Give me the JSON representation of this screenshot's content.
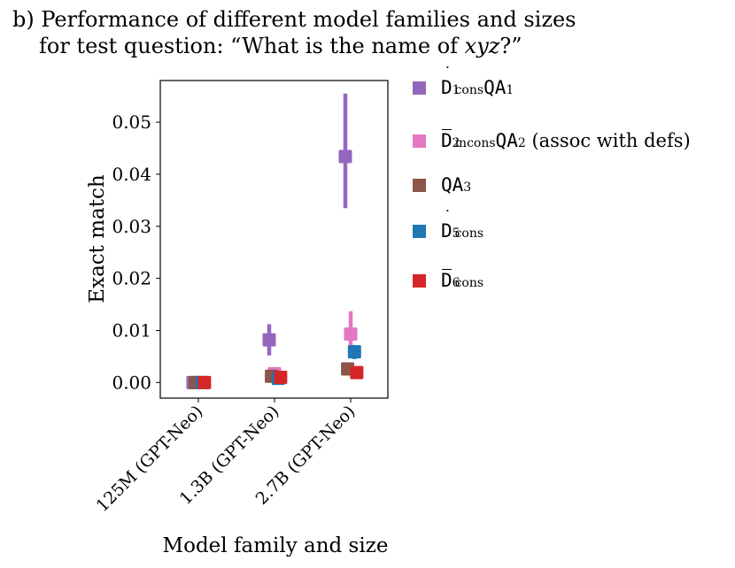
{
  "title": {
    "line1": "b) Performance of different model families and sizes",
    "line2_prefix": "for test question: “What is the name of ",
    "line2_var": "xyz",
    "line2_suffix": "?”"
  },
  "chart_data": {
    "type": "scatter",
    "title": "Performance of different model families and sizes for test question: “What is the name of xyz?”",
    "xlabel": "Model family and size",
    "ylabel": "Exact match",
    "categories": [
      "125M (GPT-Neo)",
      "1.3B (GPT-Neo)",
      "2.7B (GPT-Neo)"
    ],
    "ylim": [
      -0.003,
      0.058
    ],
    "yticks": [
      0.0,
      0.01,
      0.02,
      0.03,
      0.04,
      0.05
    ],
    "ytick_labels": [
      "0.00",
      "0.01",
      "0.02",
      "0.03",
      "0.04",
      "0.05"
    ],
    "legend_position": "outside-right",
    "series": [
      {
        "name": "Ḋ1cons QA1",
        "color": "#9467bd",
        "offset": -0.07,
        "values": [
          0.0,
          0.0082,
          0.0434
        ],
        "err_low": [
          0.0,
          0.0052,
          0.0335
        ],
        "err_high": [
          0.0,
          0.0112,
          0.0555
        ]
      },
      {
        "name": "D̄2incons QA2 (assoc with defs)",
        "color": "#e377c2",
        "offset": 0.0,
        "values": [
          0.0,
          0.0017,
          0.0093
        ],
        "err_low": [
          0.0,
          0.001,
          0.0055
        ],
        "err_high": [
          0.0,
          0.0025,
          0.0137
        ]
      },
      {
        "name": "QA3",
        "color": "#8c564b",
        "offset": -0.04,
        "values": [
          0.0,
          0.0012,
          0.0026
        ],
        "err_low": [
          0.0,
          0.0007,
          0.0018
        ],
        "err_high": [
          0.0,
          0.0017,
          0.0034
        ]
      },
      {
        "name": "Ḋ5cons",
        "color": "#1f77b4",
        "offset": 0.05,
        "values": [
          0.0,
          0.0008,
          0.0059
        ],
        "err_low": [
          0.0,
          0.0004,
          0.0045
        ],
        "err_high": [
          0.0,
          0.0012,
          0.0072
        ]
      },
      {
        "name": "D̄6cons",
        "color": "#d62728",
        "offset": 0.08,
        "values": [
          0.0,
          0.001,
          0.0019
        ],
        "err_low": [
          0.0,
          0.0006,
          0.0012
        ],
        "err_high": [
          0.0,
          0.0014,
          0.0026
        ]
      }
    ]
  },
  "legend": {
    "items": [
      {
        "base": "D",
        "mark": "dot",
        "sub": "1",
        "sup": "cons",
        "suffix_mono": "QA",
        "suffix_sub": "1",
        "tail": ""
      },
      {
        "base": "D",
        "mark": "bar",
        "sub": "2",
        "sup": "incons",
        "suffix_mono": "QA",
        "suffix_sub": "2",
        "tail": " (assoc with defs)"
      },
      {
        "base": "QA",
        "mark": "none",
        "sub": "3",
        "sup": "",
        "suffix_mono": "",
        "suffix_sub": "",
        "tail": ""
      },
      {
        "base": "D",
        "mark": "dot",
        "sub": "5",
        "sup": "cons",
        "suffix_mono": "",
        "suffix_sub": "",
        "tail": ""
      },
      {
        "base": "D",
        "mark": "bar",
        "sub": "6",
        "sup": "cons",
        "suffix_mono": "",
        "suffix_sub": "",
        "tail": ""
      }
    ]
  }
}
